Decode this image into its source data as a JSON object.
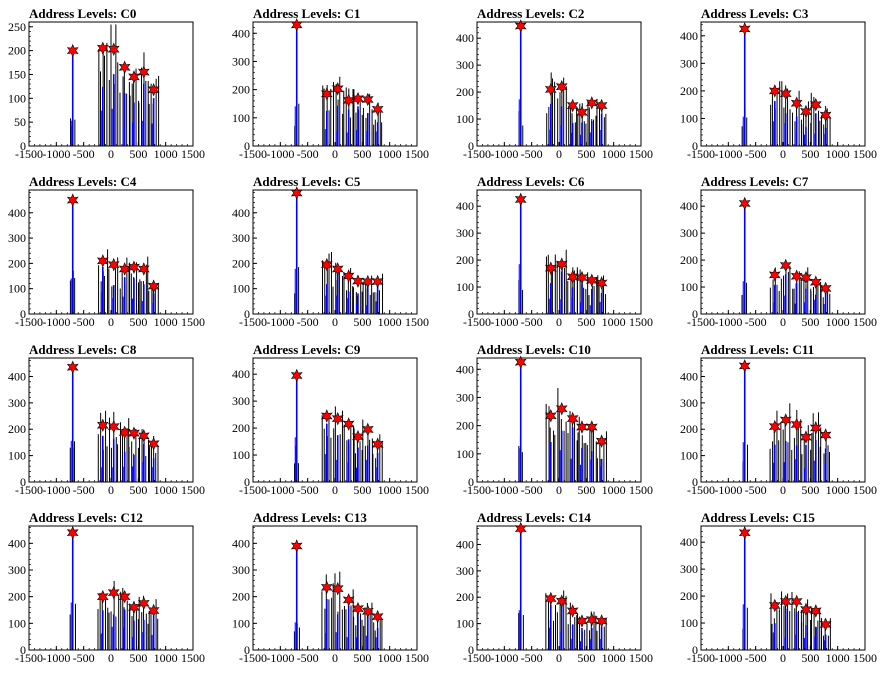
{
  "chart_data": [
    {
      "type": "bar",
      "title": "Address Levels: C0",
      "xlim": [
        -1500,
        1500
      ],
      "ylim": [
        0,
        260
      ],
      "yticks": [
        0,
        50,
        100,
        150,
        200,
        250
      ],
      "xticks": [
        -1500,
        -1000,
        -500,
        0,
        500,
        1000,
        1500
      ],
      "peaks": [
        {
          "x": -700,
          "y": 200
        },
        {
          "x": -150,
          "y": 205
        },
        {
          "x": 50,
          "y": 203
        },
        {
          "x": 250,
          "y": 165
        },
        {
          "x": 420,
          "y": 145
        },
        {
          "x": 600,
          "y": 155
        },
        {
          "x": 780,
          "y": 118
        }
      ]
    },
    {
      "type": "bar",
      "title": "Address Levels: C1",
      "xlim": [
        -1500,
        1500
      ],
      "ylim": [
        0,
        440
      ],
      "yticks": [
        0,
        100,
        200,
        300,
        400
      ],
      "xticks": [
        -1500,
        -1000,
        -500,
        0,
        500,
        1000,
        1500
      ],
      "peaks": [
        {
          "x": -700,
          "y": 430
        },
        {
          "x": -150,
          "y": 185
        },
        {
          "x": 50,
          "y": 203
        },
        {
          "x": 250,
          "y": 162
        },
        {
          "x": 420,
          "y": 168
        },
        {
          "x": 600,
          "y": 165
        },
        {
          "x": 780,
          "y": 130
        }
      ]
    },
    {
      "type": "bar",
      "title": "Address Levels: C2",
      "xlim": [
        -1500,
        1500
      ],
      "ylim": [
        0,
        460
      ],
      "yticks": [
        0,
        100,
        200,
        300,
        400
      ],
      "xticks": [
        -1500,
        -1000,
        -500,
        0,
        500,
        1000,
        1500
      ],
      "peaks": [
        {
          "x": -700,
          "y": 445
        },
        {
          "x": -150,
          "y": 210
        },
        {
          "x": 50,
          "y": 220
        },
        {
          "x": 250,
          "y": 150
        },
        {
          "x": 420,
          "y": 125
        },
        {
          "x": 600,
          "y": 160
        },
        {
          "x": 780,
          "y": 150
        }
      ]
    },
    {
      "type": "bar",
      "title": "Address Levels: C3",
      "xlim": [
        -1500,
        1500
      ],
      "ylim": [
        0,
        450
      ],
      "yticks": [
        0,
        100,
        200,
        300,
        400
      ],
      "xticks": [
        -1500,
        -1000,
        -500,
        0,
        500,
        1000,
        1500
      ],
      "peaks": [
        {
          "x": -700,
          "y": 425
        },
        {
          "x": -150,
          "y": 200
        },
        {
          "x": 50,
          "y": 190
        },
        {
          "x": 250,
          "y": 155
        },
        {
          "x": 420,
          "y": 125
        },
        {
          "x": 600,
          "y": 150
        },
        {
          "x": 780,
          "y": 112
        }
      ]
    },
    {
      "type": "bar",
      "title": "Address Levels: C4",
      "xlim": [
        -1500,
        1500
      ],
      "ylim": [
        0,
        490
      ],
      "yticks": [
        0,
        100,
        200,
        300,
        400
      ],
      "xticks": [
        -1500,
        -1000,
        -500,
        0,
        500,
        1000,
        1500
      ],
      "peaks": [
        {
          "x": -700,
          "y": 450
        },
        {
          "x": -150,
          "y": 210
        },
        {
          "x": 50,
          "y": 195
        },
        {
          "x": 250,
          "y": 178
        },
        {
          "x": 420,
          "y": 185
        },
        {
          "x": 600,
          "y": 178
        },
        {
          "x": 780,
          "y": 110
        }
      ]
    },
    {
      "type": "bar",
      "title": "Address Levels: C5",
      "xlim": [
        -1500,
        1500
      ],
      "ylim": [
        0,
        490
      ],
      "yticks": [
        0,
        100,
        200,
        300,
        400
      ],
      "xticks": [
        -1500,
        -1000,
        -500,
        0,
        500,
        1000,
        1500
      ],
      "peaks": [
        {
          "x": -700,
          "y": 478
        },
        {
          "x": -150,
          "y": 195
        },
        {
          "x": 50,
          "y": 178
        },
        {
          "x": 250,
          "y": 150
        },
        {
          "x": 420,
          "y": 130
        },
        {
          "x": 600,
          "y": 128
        },
        {
          "x": 780,
          "y": 128
        }
      ]
    },
    {
      "type": "bar",
      "title": "Address Levels: C6",
      "xlim": [
        -1500,
        1500
      ],
      "ylim": [
        0,
        460
      ],
      "yticks": [
        0,
        100,
        200,
        300,
        400
      ],
      "xticks": [
        -1500,
        -1000,
        -500,
        0,
        500,
        1000,
        1500
      ],
      "peaks": [
        {
          "x": -700,
          "y": 425
        },
        {
          "x": -150,
          "y": 170
        },
        {
          "x": 50,
          "y": 185
        },
        {
          "x": 250,
          "y": 138
        },
        {
          "x": 420,
          "y": 135
        },
        {
          "x": 600,
          "y": 125
        },
        {
          "x": 780,
          "y": 115
        }
      ]
    },
    {
      "type": "bar",
      "title": "Address Levels: C7",
      "xlim": [
        -1500,
        1500
      ],
      "ylim": [
        0,
        460
      ],
      "yticks": [
        0,
        100,
        200,
        300,
        400
      ],
      "xticks": [
        -1500,
        -1000,
        -500,
        0,
        500,
        1000,
        1500
      ],
      "peaks": [
        {
          "x": -700,
          "y": 410
        },
        {
          "x": -150,
          "y": 145
        },
        {
          "x": 50,
          "y": 180
        },
        {
          "x": 250,
          "y": 140
        },
        {
          "x": 420,
          "y": 135
        },
        {
          "x": 600,
          "y": 118
        },
        {
          "x": 780,
          "y": 95
        }
      ]
    },
    {
      "type": "bar",
      "title": "Address Levels: C8",
      "xlim": [
        -1500,
        1500
      ],
      "ylim": [
        0,
        470
      ],
      "yticks": [
        0,
        100,
        200,
        300,
        400
      ],
      "xticks": [
        -1500,
        -1000,
        -500,
        0,
        500,
        1000,
        1500
      ],
      "peaks": [
        {
          "x": -700,
          "y": 435
        },
        {
          "x": -150,
          "y": 215
        },
        {
          "x": 50,
          "y": 210
        },
        {
          "x": 250,
          "y": 188
        },
        {
          "x": 420,
          "y": 185
        },
        {
          "x": 600,
          "y": 175
        },
        {
          "x": 780,
          "y": 145
        }
      ]
    },
    {
      "type": "bar",
      "title": "Address Levels: C9",
      "xlim": [
        -1500,
        1500
      ],
      "ylim": [
        0,
        460
      ],
      "yticks": [
        0,
        100,
        200,
        300,
        400
      ],
      "xticks": [
        -1500,
        -1000,
        -500,
        0,
        500,
        1000,
        1500
      ],
      "peaks": [
        {
          "x": -700,
          "y": 395
        },
        {
          "x": -150,
          "y": 245
        },
        {
          "x": 50,
          "y": 235
        },
        {
          "x": 250,
          "y": 215
        },
        {
          "x": 420,
          "y": 168
        },
        {
          "x": 600,
          "y": 195
        },
        {
          "x": 780,
          "y": 140
        }
      ]
    },
    {
      "type": "bar",
      "title": "Address Levels: C10",
      "xlim": [
        -1500,
        1500
      ],
      "ylim": [
        0,
        440
      ],
      "yticks": [
        0,
        100,
        200,
        300,
        400
      ],
      "xticks": [
        -1500,
        -1000,
        -500,
        0,
        500,
        1000,
        1500
      ],
      "peaks": [
        {
          "x": -700,
          "y": 425
        },
        {
          "x": -150,
          "y": 235
        },
        {
          "x": 50,
          "y": 260
        },
        {
          "x": 250,
          "y": 225
        },
        {
          "x": 420,
          "y": 195
        },
        {
          "x": 600,
          "y": 195
        },
        {
          "x": 780,
          "y": 145
        }
      ]
    },
    {
      "type": "bar",
      "title": "Address Levels: C11",
      "xlim": [
        -1500,
        1500
      ],
      "ylim": [
        0,
        470
      ],
      "yticks": [
        0,
        100,
        200,
        300,
        400
      ],
      "xticks": [
        -1500,
        -1000,
        -500,
        0,
        500,
        1000,
        1500
      ],
      "peaks": [
        {
          "x": -700,
          "y": 440
        },
        {
          "x": -150,
          "y": 210
        },
        {
          "x": 50,
          "y": 235
        },
        {
          "x": 250,
          "y": 218
        },
        {
          "x": 420,
          "y": 170
        },
        {
          "x": 600,
          "y": 205
        },
        {
          "x": 780,
          "y": 178
        }
      ]
    },
    {
      "type": "bar",
      "title": "Address Levels: C12",
      "xlim": [
        -1500,
        1500
      ],
      "ylim": [
        0,
        465
      ],
      "yticks": [
        0,
        100,
        200,
        300,
        400
      ],
      "xticks": [
        -1500,
        -1000,
        -500,
        0,
        500,
        1000,
        1500
      ],
      "peaks": [
        {
          "x": -700,
          "y": 440
        },
        {
          "x": -150,
          "y": 200
        },
        {
          "x": 50,
          "y": 215
        },
        {
          "x": 250,
          "y": 200
        },
        {
          "x": 420,
          "y": 160
        },
        {
          "x": 600,
          "y": 175
        },
        {
          "x": 780,
          "y": 148
        }
      ]
    },
    {
      "type": "bar",
      "title": "Address Levels: C13",
      "xlim": [
        -1500,
        1500
      ],
      "ylim": [
        0,
        465
      ],
      "yticks": [
        0,
        100,
        200,
        300,
        400
      ],
      "xticks": [
        -1500,
        -1000,
        -500,
        0,
        500,
        1000,
        1500
      ],
      "peaks": [
        {
          "x": -700,
          "y": 390
        },
        {
          "x": -150,
          "y": 235
        },
        {
          "x": 50,
          "y": 230
        },
        {
          "x": 250,
          "y": 188
        },
        {
          "x": 420,
          "y": 155
        },
        {
          "x": 600,
          "y": 145
        },
        {
          "x": 780,
          "y": 125
        }
      ]
    },
    {
      "type": "bar",
      "title": "Address Levels: C14",
      "xlim": [
        -1500,
        1500
      ],
      "ylim": [
        0,
        470
      ],
      "yticks": [
        0,
        100,
        200,
        300,
        400
      ],
      "xticks": [
        -1500,
        -1000,
        -500,
        0,
        500,
        1000,
        1500
      ],
      "peaks": [
        {
          "x": -700,
          "y": 460
        },
        {
          "x": -150,
          "y": 195
        },
        {
          "x": 50,
          "y": 185
        },
        {
          "x": 250,
          "y": 148
        },
        {
          "x": 420,
          "y": 110
        },
        {
          "x": 600,
          "y": 115
        },
        {
          "x": 780,
          "y": 110
        }
      ]
    },
    {
      "type": "bar",
      "title": "Address Levels: C15",
      "xlim": [
        -1500,
        1500
      ],
      "ylim": [
        0,
        460
      ],
      "yticks": [
        0,
        100,
        200,
        300,
        400
      ],
      "xticks": [
        -1500,
        -1000,
        -500,
        0,
        500,
        1000,
        1500
      ],
      "peaks": [
        {
          "x": -700,
          "y": 435
        },
        {
          "x": -150,
          "y": 165
        },
        {
          "x": 50,
          "y": 180
        },
        {
          "x": 250,
          "y": 180
        },
        {
          "x": 420,
          "y": 150
        },
        {
          "x": 600,
          "y": 145
        },
        {
          "x": 780,
          "y": 95
        }
      ]
    }
  ],
  "colors": {
    "histogram": "#0000ff",
    "spikes": "#000000",
    "marker": "#ff0000",
    "marker_edge": "#000000",
    "axes": "#000000",
    "background": "#ffffff"
  }
}
